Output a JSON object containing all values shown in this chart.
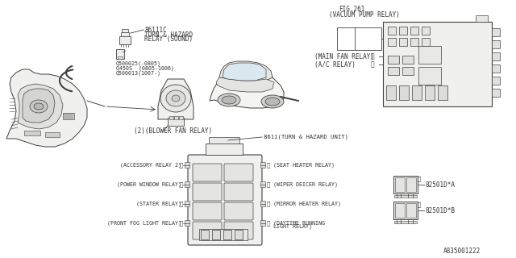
{
  "bg_color": "#ffffff",
  "line_color": "#404040",
  "text_color": "#303030",
  "part_number": "A835001222",
  "labels": {
    "part1_num": "86111C",
    "part1_l1": "TURN & HAZARD",
    "part1_l2": "RELAY (SOUND)",
    "sub1": "Q500025(-0805)",
    "sub2": "Q450S  (0805-1006)",
    "sub3": "Q500013(1007-)",
    "fig": "FIG.261",
    "vacuum": "(VACUUM PUMP RELAY)",
    "main_fan": "(MAIN FAN RELAY)",
    "ac": "(A/C RELAY)",
    "blower": "(2)(BLOWER FAN RELAY)",
    "hazard_unit": "8611(TURN & HAZARD UNIT)",
    "acc2": "(ACCESSORY RELAY 2)",
    "pw": "(POWER WINDOW RELAY)",
    "stater": "(STATER RELAY)",
    "fog": "(FRONT FOG LIGHT RELAY)",
    "seat": "(SEAT HEATER RELAY)",
    "wiper": "(WIPER DEICER RELAY)",
    "mirror": "(MIRROR HEATER RELAY)",
    "day1": "(DAYTIME RUNNING",
    "day2": "LIGHT RELAY)",
    "relay_a": "82501D*A",
    "relay_b": "82501D*B"
  }
}
